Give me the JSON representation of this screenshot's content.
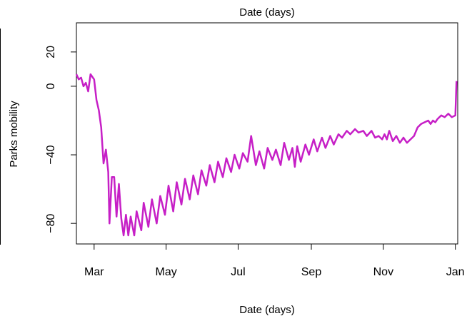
{
  "chart_data": {
    "type": "line",
    "title": "Date (days)",
    "xlabel": "Date (days)",
    "ylabel": "Parks mobility",
    "xlim": [
      "2020-02-15",
      "2021-01-03"
    ],
    "ylim": [
      -92,
      37
    ],
    "x_ticks": [
      {
        "date": "2020-03-01",
        "label": "Mar"
      },
      {
        "date": "2020-05-01",
        "label": "May"
      },
      {
        "date": "2020-07-01",
        "label": "Jul"
      },
      {
        "date": "2020-09-01",
        "label": "Sep"
      },
      {
        "date": "2020-11-01",
        "label": "Nov"
      },
      {
        "date": "2021-01-01",
        "label": "Jan"
      }
    ],
    "y_ticks": [
      -80,
      -40,
      0,
      20
    ],
    "grid": false,
    "line_color": "#c61fc6",
    "series": [
      {
        "x": [
          "2020-02-15",
          "2020-02-17",
          "2020-02-19",
          "2020-02-21",
          "2020-02-23",
          "2020-02-25",
          "2020-02-27",
          "2020-03-01",
          "2020-03-03",
          "2020-03-05",
          "2020-03-07",
          "2020-03-09",
          "2020-03-11",
          "2020-03-13",
          "2020-03-14",
          "2020-03-16",
          "2020-03-18",
          "2020-03-20",
          "2020-03-22",
          "2020-03-24",
          "2020-03-26",
          "2020-03-28",
          "2020-03-30",
          "2020-04-01",
          "2020-04-04",
          "2020-04-06",
          "2020-04-10",
          "2020-04-12",
          "2020-04-16",
          "2020-04-19",
          "2020-04-23",
          "2020-04-26",
          "2020-04-30",
          "2020-05-03",
          "2020-05-07",
          "2020-05-10",
          "2020-05-14",
          "2020-05-17",
          "2020-05-21",
          "2020-05-24",
          "2020-05-28",
          "2020-05-31",
          "2020-06-04",
          "2020-06-07",
          "2020-06-11",
          "2020-06-14",
          "2020-06-18",
          "2020-06-21",
          "2020-06-25",
          "2020-06-28",
          "2020-07-02",
          "2020-07-05",
          "2020-07-09",
          "2020-07-12",
          "2020-07-16",
          "2020-07-19",
          "2020-07-23",
          "2020-07-26",
          "2020-07-30",
          "2020-08-02",
          "2020-08-06",
          "2020-08-09",
          "2020-08-13",
          "2020-08-16",
          "2020-08-18",
          "2020-08-20",
          "2020-08-23",
          "2020-08-27",
          "2020-08-30",
          "2020-09-03",
          "2020-09-06",
          "2020-09-10",
          "2020-09-13",
          "2020-09-17",
          "2020-09-20",
          "2020-09-24",
          "2020-09-27",
          "2020-10-01",
          "2020-10-04",
          "2020-10-08",
          "2020-10-11",
          "2020-10-15",
          "2020-10-18",
          "2020-10-22",
          "2020-10-25",
          "2020-10-28",
          "2020-10-31",
          "2020-11-02",
          "2020-11-04",
          "2020-11-06",
          "2020-11-09",
          "2020-11-12",
          "2020-11-15",
          "2020-11-18",
          "2020-11-21",
          "2020-11-24",
          "2020-11-27",
          "2020-11-30",
          "2020-12-03",
          "2020-12-06",
          "2020-12-09",
          "2020-12-11",
          "2020-12-13",
          "2020-12-15",
          "2020-12-17",
          "2020-12-20",
          "2020-12-23",
          "2020-12-26",
          "2020-12-29",
          "2021-01-01",
          "2021-01-02"
        ],
        "y": [
          7,
          4,
          5,
          0,
          2,
          -3,
          7,
          4,
          -8,
          -14,
          -24,
          -45,
          -37,
          -50,
          -80,
          -53,
          -53,
          -76,
          -57,
          -77,
          -87,
          -75,
          -87,
          -76,
          -87,
          -73,
          -84,
          -68,
          -82,
          -66,
          -80,
          -64,
          -75,
          -58,
          -73,
          -56,
          -69,
          -54,
          -66,
          -52,
          -63,
          -49,
          -58,
          -46,
          -56,
          -44,
          -53,
          -42,
          -50,
          -40,
          -48,
          -39,
          -44,
          -29,
          -46,
          -38,
          -48,
          -36,
          -43,
          -37,
          -46,
          -33,
          -43,
          -36,
          -47,
          -35,
          -44,
          -34,
          -40,
          -31,
          -38,
          -30,
          -36,
          -29,
          -34,
          -28,
          -30,
          -26,
          -28,
          -25,
          -27,
          -26,
          -29,
          -26,
          -30,
          -29,
          -31,
          -28,
          -31,
          -26,
          -32,
          -29,
          -33,
          -30,
          -33,
          -31,
          -29,
          -24,
          -22,
          -21,
          -20,
          -22,
          -20,
          -21,
          -19,
          -17,
          -18,
          -16,
          -18,
          -17,
          3
        ]
      }
    ]
  }
}
